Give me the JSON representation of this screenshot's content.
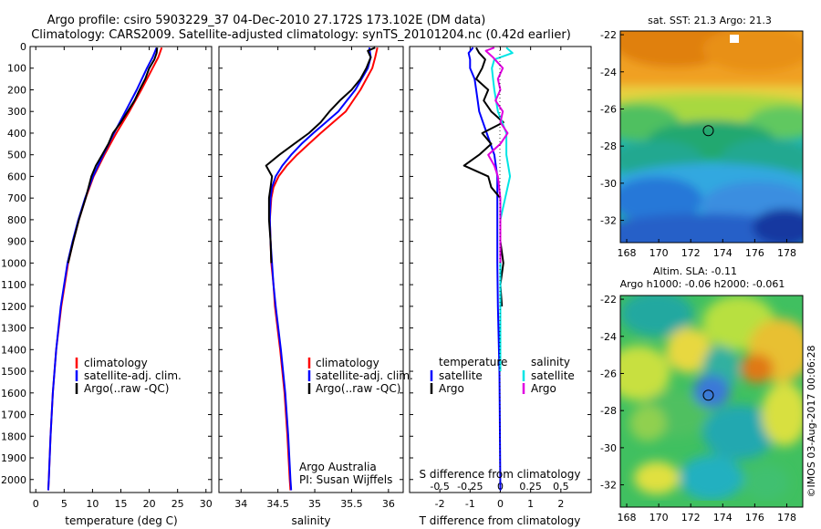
{
  "header": {
    "title_line1": "Argo profile: csiro 5903229_37 04-Dec-2010 27.172S 173.102E (DM data)",
    "title_line2": "Climatology: CARS2009. Satellite-adjusted climatology: synTS_20101204.nc (0.42d earlier)"
  },
  "colors": {
    "climatology": "#ff0000",
    "satellite": "#0000ff",
    "argo": "#000000",
    "salinity_satellite": "#00e5e5",
    "salinity_argo": "#e000e0"
  },
  "chart_data": [
    {
      "type": "line",
      "id": "temperature",
      "xlabel": "temperature (deg C)",
      "ylabel": "",
      "xlim": [
        -1,
        31
      ],
      "ylim": [
        2060,
        0
      ],
      "x_ticks": [
        "0",
        "5",
        "10",
        "15",
        "20",
        "25",
        "30"
      ],
      "y_ticks": [
        "0",
        "100",
        "200",
        "300",
        "400",
        "500",
        "600",
        "700",
        "800",
        "900",
        "1000",
        "1100",
        "1200",
        "1300",
        "1400",
        "1500",
        "1600",
        "1700",
        "1800",
        "1900",
        "2000"
      ],
      "legend": [
        "climatology",
        "satellite-adj. clim.",
        "Argo(..raw -QC)"
      ],
      "legend_placement": "lower-middle",
      "series": [
        {
          "name": "climatology",
          "color": "#ff0000",
          "depth": [
            5,
            50,
            100,
            200,
            300,
            400,
            500,
            600,
            700,
            800,
            900,
            1000,
            1200,
            1400,
            1600,
            1800,
            2000,
            2050
          ],
          "values": [
            22.2,
            21.6,
            20.6,
            18.6,
            16.5,
            14.2,
            12.1,
            10.2,
            8.8,
            7.6,
            6.6,
            5.7,
            4.5,
            3.6,
            3.0,
            2.6,
            2.3,
            2.2
          ]
        },
        {
          "name": "satellite-adj. clim.",
          "color": "#0000ff",
          "depth": [
            5,
            50,
            100,
            200,
            300,
            400,
            500,
            600,
            700,
            800,
            900,
            1000,
            1200,
            1400,
            1600,
            1800,
            2000,
            2050
          ],
          "values": [
            21.3,
            20.6,
            19.6,
            17.8,
            15.8,
            13.8,
            11.9,
            10.1,
            8.7,
            7.5,
            6.5,
            5.6,
            4.4,
            3.6,
            3.0,
            2.6,
            2.3,
            2.2
          ]
        },
        {
          "name": "Argo",
          "color": "#000000",
          "depth": [
            5,
            30,
            60,
            100,
            150,
            200,
            250,
            300,
            350,
            400,
            450,
            500,
            550,
            600,
            650,
            700,
            800,
            900,
            1000
          ],
          "values": [
            21.4,
            21.3,
            20.9,
            20.0,
            19.3,
            18.3,
            17.4,
            16.2,
            15.0,
            13.6,
            12.8,
            11.7,
            10.6,
            9.8,
            9.3,
            8.8,
            7.6,
            6.6,
            5.7
          ]
        }
      ]
    },
    {
      "type": "line",
      "id": "salinity",
      "xlabel": "salinity",
      "xlim": [
        33.7,
        36.2
      ],
      "ylim": [
        2060,
        0
      ],
      "x_ticks": [
        "34",
        "34.5",
        "35",
        "35.5",
        "36"
      ],
      "legend": [
        "climatology",
        "satellite-adj. clim.",
        "Argo(..raw -QC)"
      ],
      "legend_placement": "lower-right",
      "annotation": [
        "Argo Australia",
        "PI: Susan Wijffels"
      ],
      "series": [
        {
          "name": "climatology",
          "color": "#ff0000",
          "depth": [
            5,
            50,
            100,
            200,
            300,
            350,
            400,
            450,
            500,
            550,
            600,
            650,
            700,
            800,
            900,
            1000,
            1100,
            1200,
            1400,
            1600,
            1800,
            2000,
            2050
          ],
          "values": [
            35.85,
            35.82,
            35.78,
            35.62,
            35.42,
            35.25,
            35.08,
            34.92,
            34.76,
            34.62,
            34.51,
            34.44,
            34.41,
            34.39,
            34.4,
            34.41,
            34.44,
            34.46,
            34.53,
            34.59,
            34.63,
            34.66,
            34.67
          ]
        },
        {
          "name": "satellite-adj. clim.",
          "color": "#0000ff",
          "depth": [
            5,
            50,
            100,
            200,
            300,
            350,
            400,
            450,
            500,
            550,
            600,
            650,
            700,
            800,
            900,
            1000,
            1100,
            1200,
            1400,
            1600,
            1800,
            2000,
            2050
          ],
          "values": [
            35.74,
            35.76,
            35.72,
            35.55,
            35.32,
            35.15,
            34.98,
            34.82,
            34.68,
            34.56,
            34.47,
            34.42,
            34.4,
            34.39,
            34.4,
            34.42,
            34.44,
            34.47,
            34.54,
            34.6,
            34.64,
            34.67,
            34.68
          ]
        },
        {
          "name": "Argo",
          "color": "#000000",
          "depth": [
            5,
            20,
            50,
            100,
            150,
            200,
            250,
            300,
            350,
            400,
            450,
            500,
            550,
            600,
            650,
            700,
            800,
            900,
            1000
          ],
          "values": [
            35.82,
            35.72,
            35.76,
            35.7,
            35.62,
            35.5,
            35.34,
            35.2,
            35.08,
            34.92,
            34.72,
            34.52,
            34.34,
            34.42,
            34.4,
            34.38,
            34.38,
            34.4,
            34.41
          ]
        }
      ]
    },
    {
      "type": "line",
      "id": "difference",
      "xlabel": "T difference from climatology",
      "xlabel_top": "S difference from climatology",
      "xlim_T": [
        -3,
        3
      ],
      "xlim_S": [
        -0.75,
        0.75
      ],
      "ylim": [
        2060,
        0
      ],
      "x_ticks_T": [
        "-2",
        "-1",
        "0",
        "1",
        "2"
      ],
      "x_ticks_S": [
        "-0.5",
        "-0.25",
        "0",
        "0.25",
        "0.5"
      ],
      "legend_temperature_title": "temperature",
      "legend_salinity_title": "salinity",
      "legend_temperature": [
        "satellite",
        "Argo"
      ],
      "legend_salinity": [
        "satellite",
        "Argo"
      ],
      "series": [
        {
          "name": "T satellite",
          "color": "#0000ff",
          "depth": [
            5,
            30,
            60,
            100,
            150,
            200,
            300,
            400,
            500,
            600,
            700,
            800,
            900,
            1000,
            1200,
            1500,
            2050
          ],
          "values": [
            -0.9,
            -1.05,
            -1.0,
            -1.0,
            -0.85,
            -0.8,
            -0.7,
            -0.45,
            -0.2,
            -0.1,
            -0.1,
            -0.1,
            -0.1,
            -0.1,
            -0.08,
            -0.03,
            0
          ]
        },
        {
          "name": "T Argo",
          "color": "#000000",
          "depth": [
            5,
            30,
            60,
            100,
            150,
            200,
            250,
            300,
            350,
            400,
            450,
            500,
            550,
            600,
            650,
            700,
            800,
            900,
            1000,
            1100,
            1200
          ],
          "values": [
            -0.8,
            -0.7,
            -0.5,
            -0.6,
            -0.8,
            -0.4,
            -0.55,
            -0.3,
            0.1,
            -0.6,
            -0.3,
            -0.7,
            -1.2,
            -0.4,
            -0.3,
            0.0,
            0.0,
            0.0,
            0.1,
            0.0,
            0.05
          ]
        },
        {
          "name": "S satellite",
          "color": "#00e5e5",
          "depth": [
            5,
            30,
            60,
            100,
            150,
            200,
            300,
            400,
            500,
            600,
            700,
            800,
            900,
            1000,
            1200,
            1500
          ],
          "values": [
            0.05,
            0.1,
            -0.05,
            -0.07,
            -0.06,
            -0.05,
            -0.02,
            0.05,
            0.05,
            0.08,
            0.04,
            0.0,
            0.0,
            0.0,
            0.0,
            0.0
          ]
        },
        {
          "name": "S Argo",
          "color": "#e000e0",
          "depth": [
            5,
            20,
            50,
            100,
            150,
            200,
            250,
            300,
            350,
            400,
            450,
            500,
            550,
            600,
            700,
            800,
            900,
            1000
          ],
          "values": [
            -0.05,
            -0.12,
            -0.06,
            0.02,
            -0.02,
            0.0,
            -0.04,
            0.02,
            0.0,
            0.06,
            0.0,
            -0.1,
            -0.05,
            -0.02,
            0.0,
            0.0,
            0.0,
            0.0
          ]
        }
      ]
    },
    {
      "type": "heatmap",
      "id": "sst_map",
      "title": "sat. SST: 21.3  Argo: 21.3",
      "x_ticks": [
        "168",
        "170",
        "172",
        "174",
        "176",
        "178"
      ],
      "y_ticks": [
        "-22",
        "-24",
        "-26",
        "-28",
        "-30",
        "-32"
      ],
      "xlim": [
        167.6,
        179.0
      ],
      "ylim": [
        -33.2,
        -21.8
      ],
      "marker": {
        "lon": 173.1,
        "lat": -27.17
      }
    },
    {
      "type": "heatmap",
      "id": "sla_map",
      "title_line1": "Altim. SLA: -0.11",
      "title_line2": "Argo h1000: -0.06 h2000: -0.061",
      "x_ticks": [
        "168",
        "170",
        "172",
        "174",
        "176",
        "178"
      ],
      "y_ticks": [
        "-22",
        "-24",
        "-26",
        "-28",
        "-30",
        "-32"
      ],
      "xlim": [
        167.6,
        179.0
      ],
      "ylim": [
        -33.2,
        -21.8
      ],
      "marker": {
        "lon": 173.1,
        "lat": -27.17
      }
    }
  ],
  "footer": {
    "copyright": "©IMOS 03-Aug-2017 00:06:28"
  }
}
